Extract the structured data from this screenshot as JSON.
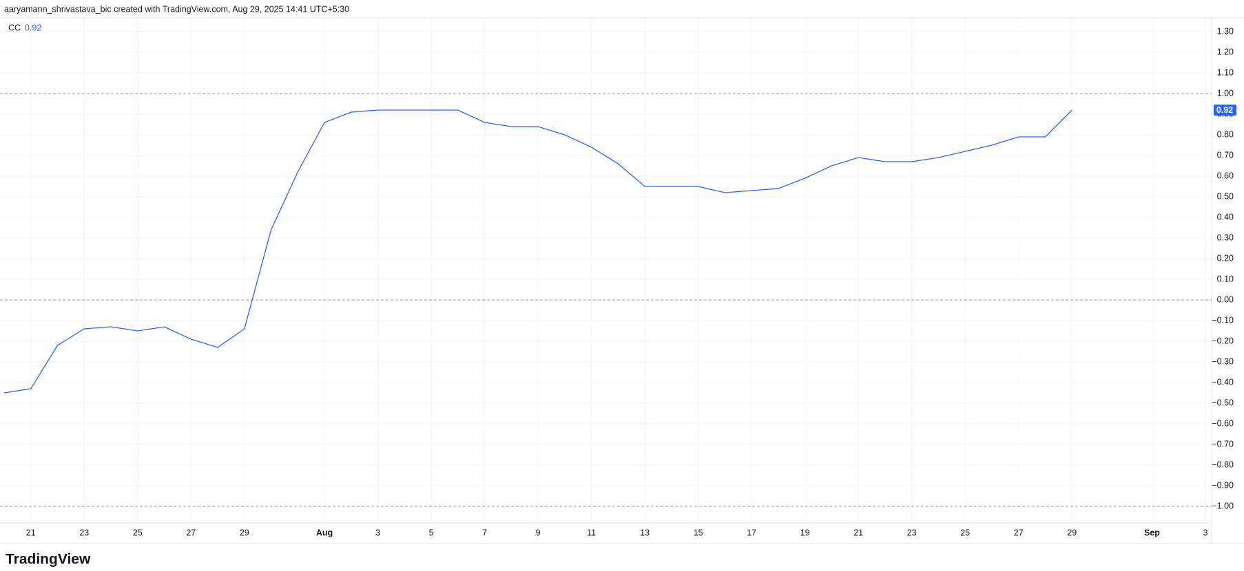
{
  "attribution": "aaryamann_shrivastava_bic created with TradingView.com, Aug 29, 2025 14:41 UTC+5:30",
  "logo": "TradingView",
  "chart_data": {
    "type": "line",
    "x": [
      "2025-07-20",
      "2025-07-21",
      "2025-07-22",
      "2025-07-23",
      "2025-07-24",
      "2025-07-25",
      "2025-07-26",
      "2025-07-27",
      "2025-07-28",
      "2025-07-29",
      "2025-07-30",
      "2025-07-31",
      "2025-08-01",
      "2025-08-02",
      "2025-08-03",
      "2025-08-04",
      "2025-08-05",
      "2025-08-06",
      "2025-08-07",
      "2025-08-08",
      "2025-08-09",
      "2025-08-10",
      "2025-08-11",
      "2025-08-12",
      "2025-08-13",
      "2025-08-14",
      "2025-08-15",
      "2025-08-16",
      "2025-08-17",
      "2025-08-18",
      "2025-08-19",
      "2025-08-20",
      "2025-08-21",
      "2025-08-22",
      "2025-08-23",
      "2025-08-24",
      "2025-08-25",
      "2025-08-26",
      "2025-08-27",
      "2025-08-28",
      "2025-08-29"
    ],
    "series": [
      {
        "name": "CC",
        "color": "#2962ff",
        "last_value_label": "0.92",
        "values": [
          -0.45,
          -0.43,
          -0.22,
          -0.14,
          -0.13,
          -0.15,
          -0.13,
          -0.19,
          -0.23,
          -0.14,
          0.34,
          0.62,
          0.86,
          0.91,
          0.92,
          0.92,
          0.92,
          0.92,
          0.86,
          0.84,
          0.84,
          0.8,
          0.74,
          0.66,
          0.55,
          0.55,
          0.55,
          0.52,
          0.53,
          0.54,
          0.59,
          0.65,
          0.69,
          0.67,
          0.67,
          0.69,
          0.72,
          0.75,
          0.79,
          0.79,
          0.92
        ]
      }
    ],
    "xlim": [
      "2025-07-20",
      "2025-09-03"
    ],
    "xticks": [
      {
        "value": "2025-07-21",
        "label": "21"
      },
      {
        "value": "2025-07-23",
        "label": "23"
      },
      {
        "value": "2025-07-25",
        "label": "25"
      },
      {
        "value": "2025-07-27",
        "label": "27"
      },
      {
        "value": "2025-07-29",
        "label": "29"
      },
      {
        "value": "2025-08-01",
        "label": "Aug"
      },
      {
        "value": "2025-08-03",
        "label": "3"
      },
      {
        "value": "2025-08-05",
        "label": "5"
      },
      {
        "value": "2025-08-07",
        "label": "7"
      },
      {
        "value": "2025-08-09",
        "label": "9"
      },
      {
        "value": "2025-08-11",
        "label": "11"
      },
      {
        "value": "2025-08-13",
        "label": "13"
      },
      {
        "value": "2025-08-15",
        "label": "15"
      },
      {
        "value": "2025-08-17",
        "label": "17"
      },
      {
        "value": "2025-08-19",
        "label": "19"
      },
      {
        "value": "2025-08-21",
        "label": "21"
      },
      {
        "value": "2025-08-23",
        "label": "23"
      },
      {
        "value": "2025-08-25",
        "label": "25"
      },
      {
        "value": "2025-08-27",
        "label": "27"
      },
      {
        "value": "2025-08-29",
        "label": "29"
      },
      {
        "value": "2025-09-01",
        "label": "Sep"
      },
      {
        "value": "2025-09-03",
        "label": "3"
      }
    ],
    "ylim": [
      -1.08,
      1.36
    ],
    "yticks": [
      {
        "value": 1.3,
        "label": "1.30"
      },
      {
        "value": 1.2,
        "label": "1.20"
      },
      {
        "value": 1.1,
        "label": "1.10"
      },
      {
        "value": 1,
        "label": "1.00"
      },
      {
        "value": 0.9,
        "label": "0.90"
      },
      {
        "value": 0.8,
        "label": "0.80"
      },
      {
        "value": 0.7,
        "label": "0.70"
      },
      {
        "value": 0.6,
        "label": "0.60"
      },
      {
        "value": 0.5,
        "label": "0.50"
      },
      {
        "value": 0.4,
        "label": "0.40"
      },
      {
        "value": 0.3,
        "label": "0.30"
      },
      {
        "value": 0.2,
        "label": "0.20"
      },
      {
        "value": 0.1,
        "label": "0.10"
      },
      {
        "value": 0,
        "label": "0.00"
      },
      {
        "value": -0.1,
        "label": "−0.10"
      },
      {
        "value": -0.2,
        "label": "−0.20"
      },
      {
        "value": -0.3,
        "label": "−0.30"
      },
      {
        "value": -0.4,
        "label": "−0.40"
      },
      {
        "value": -0.5,
        "label": "−0.50"
      },
      {
        "value": -0.6,
        "label": "−0.60"
      },
      {
        "value": -0.7,
        "label": "−0.70"
      },
      {
        "value": -0.8,
        "label": "−0.80"
      },
      {
        "value": -0.9,
        "label": "−0.90"
      },
      {
        "value": -1,
        "label": "−1.00"
      }
    ],
    "hlines": [
      1,
      0,
      -1
    ],
    "grid": true
  }
}
